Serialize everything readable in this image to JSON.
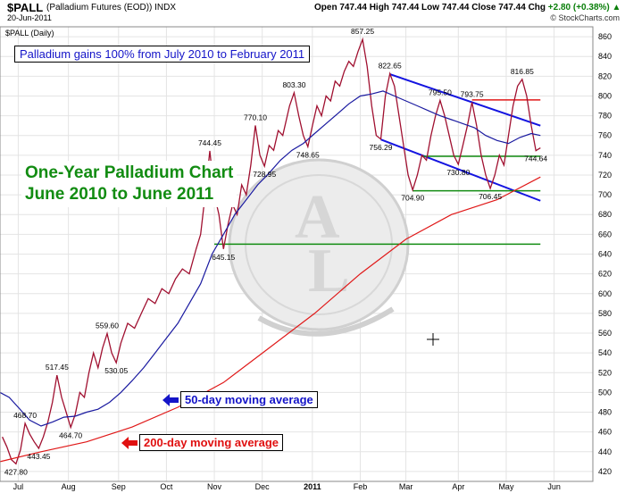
{
  "header": {
    "symbol": "$PALL",
    "description": "(Palladium Futures (EOD))  INDX",
    "date": "20-Jun-2011",
    "ohlc_text": "Open 747.44  High 747.44  Low 747.44  Close 747.44  Chg",
    "change_text": "+2.80 (+0.38%) ▲",
    "brand": "© StockCharts.com"
  },
  "chart_data": {
    "type": "line",
    "inset_label": "$PALL (Daily)",
    "ylim": [
      410,
      870
    ],
    "yticks": [
      420,
      440,
      460,
      480,
      500,
      520,
      540,
      560,
      580,
      600,
      620,
      640,
      660,
      680,
      700,
      720,
      740,
      760,
      780,
      800,
      820,
      840,
      860
    ],
    "x_months": [
      {
        "label": "Jul",
        "t": 0
      },
      {
        "label": "Aug",
        "t": 22
      },
      {
        "label": "Sep",
        "t": 44
      },
      {
        "label": "Oct",
        "t": 65
      },
      {
        "label": "Nov",
        "t": 86
      },
      {
        "label": "Dec",
        "t": 107
      },
      {
        "label": "2011",
        "t": 129
      },
      {
        "label": "Feb",
        "t": 150
      },
      {
        "label": "Mar",
        "t": 170
      },
      {
        "label": "Apr",
        "t": 193
      },
      {
        "label": "May",
        "t": 214
      },
      {
        "label": "Jun",
        "t": 235
      }
    ],
    "t_range": [
      -8,
      252
    ],
    "series": [
      {
        "role": "price",
        "color": "#a01030",
        "points": [
          [
            -7,
            455
          ],
          [
            -5,
            445
          ],
          [
            -3,
            432
          ],
          [
            -1,
            427.8
          ],
          [
            1,
            442
          ],
          [
            3,
            468.7
          ],
          [
            5,
            458
          ],
          [
            7,
            450
          ],
          [
            9,
            443.45
          ],
          [
            11,
            455
          ],
          [
            13,
            470
          ],
          [
            15,
            490
          ],
          [
            17,
            517.45
          ],
          [
            19,
            495
          ],
          [
            21,
            480
          ],
          [
            23,
            464.7
          ],
          [
            25,
            478
          ],
          [
            27,
            500
          ],
          [
            29,
            495
          ],
          [
            31,
            520
          ],
          [
            33,
            540
          ],
          [
            35,
            525
          ],
          [
            37,
            545
          ],
          [
            39,
            559.6
          ],
          [
            41,
            540
          ],
          [
            43,
            530.05
          ],
          [
            45,
            550
          ],
          [
            48,
            570
          ],
          [
            51,
            565
          ],
          [
            54,
            580
          ],
          [
            57,
            595
          ],
          [
            60,
            590
          ],
          [
            63,
            605
          ],
          [
            66,
            600
          ],
          [
            69,
            615
          ],
          [
            72,
            625
          ],
          [
            75,
            620
          ],
          [
            78,
            645
          ],
          [
            80,
            660
          ],
          [
            82,
            700
          ],
          [
            84,
            744.45
          ],
          [
            86,
            700
          ],
          [
            88,
            680
          ],
          [
            90,
            645.15
          ],
          [
            92,
            670
          ],
          [
            94,
            690
          ],
          [
            96,
            680
          ],
          [
            98,
            710
          ],
          [
            100,
            700
          ],
          [
            102,
            730
          ],
          [
            104,
            770.1
          ],
          [
            106,
            740
          ],
          [
            108,
            728.95
          ],
          [
            110,
            750
          ],
          [
            112,
            745
          ],
          [
            114,
            765
          ],
          [
            116,
            760
          ],
          [
            119,
            790
          ],
          [
            121,
            803.3
          ],
          [
            123,
            780
          ],
          [
            125,
            760
          ],
          [
            127,
            748.65
          ],
          [
            129,
            770
          ],
          [
            131,
            790
          ],
          [
            133,
            780
          ],
          [
            135,
            800
          ],
          [
            137,
            795
          ],
          [
            139,
            815
          ],
          [
            141,
            810
          ],
          [
            143,
            825
          ],
          [
            145,
            835
          ],
          [
            147,
            830
          ],
          [
            149,
            845
          ],
          [
            151,
            857.25
          ],
          [
            153,
            830
          ],
          [
            155,
            790
          ],
          [
            157,
            760
          ],
          [
            159,
            756.29
          ],
          [
            161,
            800
          ],
          [
            163,
            822.65
          ],
          [
            165,
            810
          ],
          [
            167,
            780
          ],
          [
            169,
            750
          ],
          [
            171,
            720
          ],
          [
            173,
            704.9
          ],
          [
            175,
            720
          ],
          [
            177,
            740
          ],
          [
            179,
            735
          ],
          [
            181,
            760
          ],
          [
            183,
            780
          ],
          [
            185,
            795.5
          ],
          [
            187,
            780
          ],
          [
            189,
            760
          ],
          [
            191,
            740
          ],
          [
            193,
            730.8
          ],
          [
            195,
            750
          ],
          [
            197,
            770
          ],
          [
            199,
            793.75
          ],
          [
            201,
            770
          ],
          [
            203,
            740
          ],
          [
            205,
            720
          ],
          [
            207,
            706.45
          ],
          [
            209,
            720
          ],
          [
            211,
            740
          ],
          [
            213,
            730
          ],
          [
            215,
            760
          ],
          [
            217,
            790
          ],
          [
            219,
            810
          ],
          [
            221,
            816.85
          ],
          [
            223,
            800
          ],
          [
            225,
            770
          ],
          [
            227,
            744.64
          ],
          [
            229,
            747.44
          ]
        ]
      },
      {
        "role": "50-day moving average",
        "color": "#1a1aa0",
        "points": [
          [
            -8,
            500
          ],
          [
            -4,
            495
          ],
          [
            0,
            485
          ],
          [
            5,
            472
          ],
          [
            10,
            466
          ],
          [
            15,
            470
          ],
          [
            20,
            475
          ],
          [
            25,
            476
          ],
          [
            30,
            480
          ],
          [
            35,
            483
          ],
          [
            40,
            490
          ],
          [
            45,
            500
          ],
          [
            50,
            512
          ],
          [
            55,
            525
          ],
          [
            60,
            540
          ],
          [
            65,
            555
          ],
          [
            70,
            570
          ],
          [
            75,
            590
          ],
          [
            80,
            610
          ],
          [
            85,
            640
          ],
          [
            90,
            660
          ],
          [
            95,
            680
          ],
          [
            100,
            695
          ],
          [
            105,
            710
          ],
          [
            110,
            722
          ],
          [
            115,
            735
          ],
          [
            120,
            745
          ],
          [
            125,
            752
          ],
          [
            130,
            762
          ],
          [
            135,
            772
          ],
          [
            140,
            782
          ],
          [
            145,
            792
          ],
          [
            150,
            800
          ],
          [
            155,
            802
          ],
          [
            160,
            805
          ],
          [
            165,
            800
          ],
          [
            170,
            795
          ],
          [
            175,
            790
          ],
          [
            180,
            785
          ],
          [
            185,
            780
          ],
          [
            190,
            776
          ],
          [
            195,
            772
          ],
          [
            200,
            768
          ],
          [
            205,
            760
          ],
          [
            210,
            755
          ],
          [
            215,
            752
          ],
          [
            220,
            758
          ],
          [
            225,
            762
          ],
          [
            229,
            760
          ]
        ]
      },
      {
        "role": "200-day moving average",
        "color": "#e01818",
        "points": [
          [
            -8,
            430
          ],
          [
            10,
            440
          ],
          [
            30,
            450
          ],
          [
            50,
            465
          ],
          [
            70,
            485
          ],
          [
            90,
            510
          ],
          [
            110,
            545
          ],
          [
            130,
            580
          ],
          [
            150,
            620
          ],
          [
            170,
            655
          ],
          [
            190,
            680
          ],
          [
            210,
            695
          ],
          [
            229,
            718
          ]
        ]
      }
    ],
    "trendlines": [
      {
        "role": "upper channel",
        "color": "#1414e0",
        "from": [
          163,
          822
        ],
        "to": [
          229,
          770
        ]
      },
      {
        "role": "lower channel",
        "color": "#1414e0",
        "from": [
          159,
          756
        ],
        "to": [
          229,
          694
        ]
      },
      {
        "role": "resistance",
        "color": "#e01818",
        "from": [
          199,
          796
        ],
        "to": [
          229,
          796
        ]
      },
      {
        "role": "support",
        "color": "#128c12",
        "from": [
          177,
          739
        ],
        "to": [
          229,
          739
        ]
      },
      {
        "role": "support",
        "color": "#128c12",
        "from": [
          173,
          704
        ],
        "to": [
          229,
          704
        ]
      },
      {
        "role": "support",
        "color": "#128c12",
        "from": [
          86,
          650
        ],
        "to": [
          229,
          650
        ]
      }
    ],
    "data_labels": [
      {
        "text": "427.80",
        "t": -1,
        "v": 427.8,
        "pos": "below"
      },
      {
        "text": "468.70",
        "t": 3,
        "v": 468.7,
        "pos": "above"
      },
      {
        "text": "443.45",
        "t": 9,
        "v": 443.45,
        "pos": "below"
      },
      {
        "text": "517.45",
        "t": 17,
        "v": 517.45,
        "pos": "above"
      },
      {
        "text": "464.70",
        "t": 23,
        "v": 464.7,
        "pos": "below"
      },
      {
        "text": "559.60",
        "t": 39,
        "v": 559.6,
        "pos": "above"
      },
      {
        "text": "530.05",
        "t": 43,
        "v": 530.05,
        "pos": "below"
      },
      {
        "text": "744.45",
        "t": 84,
        "v": 744.45,
        "pos": "above"
      },
      {
        "text": "645.15",
        "t": 90,
        "v": 645.15,
        "pos": "below"
      },
      {
        "text": "770.10",
        "t": 104,
        "v": 770.1,
        "pos": "above"
      },
      {
        "text": "728.95",
        "t": 108,
        "v": 728.95,
        "pos": "below"
      },
      {
        "text": "803.30",
        "t": 121,
        "v": 803.3,
        "pos": "above"
      },
      {
        "text": "748.65",
        "t": 127,
        "v": 748.65,
        "pos": "below"
      },
      {
        "text": "857.25",
        "t": 151,
        "v": 857.25,
        "pos": "above"
      },
      {
        "text": "822.65",
        "t": 163,
        "v": 822.65,
        "pos": "above"
      },
      {
        "text": "756.29",
        "t": 159,
        "v": 756.29,
        "pos": "below"
      },
      {
        "text": "704.90",
        "t": 173,
        "v": 704.9,
        "pos": "below"
      },
      {
        "text": "795.50",
        "t": 185,
        "v": 795.5,
        "pos": "above"
      },
      {
        "text": "730.80",
        "t": 193,
        "v": 730.8,
        "pos": "below"
      },
      {
        "text": "793.75",
        "t": 199,
        "v": 793.75,
        "pos": "above"
      },
      {
        "text": "706.45",
        "t": 207,
        "v": 706.45,
        "pos": "below"
      },
      {
        "text": "816.85",
        "t": 221,
        "v": 816.85,
        "pos": "above"
      },
      {
        "text": "744.64",
        "t": 227,
        "v": 744.64,
        "pos": "below"
      }
    ]
  },
  "annotations": {
    "title_box": "Palladium gains 100% from July 2010 to February 2011",
    "big_title_line1": "One-Year Palladium Chart",
    "big_title_line2": "June 2010 to June 2011",
    "ma50_label": "50-day moving average",
    "ma200_label": "200-day moving average",
    "ma50_arrow_color": "#1414c8",
    "ma200_arrow_color": "#e01010"
  }
}
